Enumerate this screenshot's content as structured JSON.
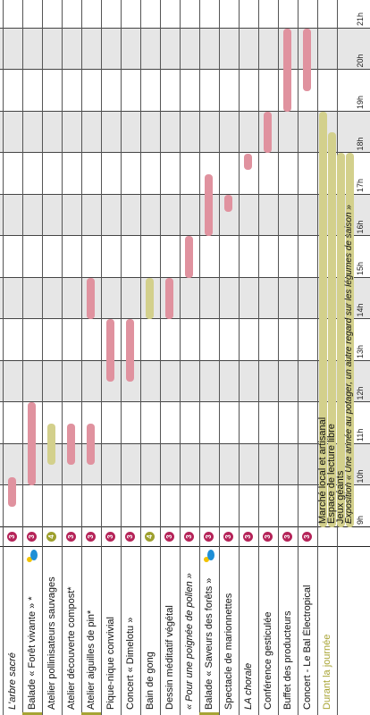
{
  "hours": [
    "9h",
    "10h",
    "11h",
    "12h",
    "13h",
    "14h",
    "15h",
    "16h",
    "17h",
    "18h",
    "19h",
    "20h",
    "21h"
  ],
  "activities": [
    {
      "label": "L'arbre sacré",
      "italic": true,
      "badge": "3",
      "badge_color": "pink",
      "bars": [
        {
          "start": 9.5,
          "end": 10.2,
          "color": "pink"
        }
      ]
    },
    {
      "label": "Balade « Forêt vivante » *",
      "italic": false,
      "badge": "3",
      "badge_color": "pink",
      "weather_icon": "sun-cloud-icon",
      "accent": true,
      "bars": [
        {
          "start": 10,
          "end": 12,
          "color": "pink"
        }
      ]
    },
    {
      "label": "Atelier pollinisateurs sauvages",
      "italic": false,
      "badge": "4",
      "badge_color": "olive",
      "bars": [
        {
          "start": 10.5,
          "end": 11.5,
          "color": "olive"
        }
      ]
    },
    {
      "label": "Atelier découverte compost*",
      "italic": false,
      "badge": "3",
      "badge_color": "pink",
      "bars": [
        {
          "start": 10.5,
          "end": 11.5,
          "color": "pink"
        }
      ]
    },
    {
      "label": "Atelier aiguilles de pin*",
      "italic": false,
      "badge": "3",
      "badge_color": "pink",
      "accent": true,
      "bars": [
        {
          "start": 10.5,
          "end": 11.5,
          "color": "pink"
        },
        {
          "start": 14,
          "end": 15,
          "color": "pink"
        }
      ]
    },
    {
      "label": "Pique-nique convivial",
      "italic": false,
      "badge": "3",
      "badge_color": "pink",
      "bars": [
        {
          "start": 12.5,
          "end": 14,
          "color": "pink"
        }
      ]
    },
    {
      "label": "Concert « Dimelotu »",
      "italic": false,
      "badge": "3",
      "badge_color": "pink",
      "bars": [
        {
          "start": 12.5,
          "end": 14,
          "color": "pink"
        }
      ]
    },
    {
      "label": "Bain de gong",
      "italic": false,
      "badge": "4",
      "badge_color": "olive",
      "bars": [
        {
          "start": 14,
          "end": 15,
          "color": "olive"
        }
      ]
    },
    {
      "label": "Dessin méditatif végétal",
      "italic": false,
      "badge": "3",
      "badge_color": "pink",
      "bars": [
        {
          "start": 14,
          "end": 15,
          "color": "pink"
        }
      ]
    },
    {
      "label": "« Pour une poignée de pollen »",
      "italic": true,
      "badge": "3",
      "badge_color": "pink",
      "bars": [
        {
          "start": 15,
          "end": 16,
          "color": "pink"
        }
      ]
    },
    {
      "label": "Balade « Saveurs des forêts »",
      "italic": false,
      "badge": "3",
      "badge_color": "pink",
      "weather_icon": "sun-cloud-icon",
      "accent": true,
      "bars": [
        {
          "start": 16,
          "end": 17.5,
          "color": "pink"
        }
      ]
    },
    {
      "label": "Spectacle de marionnettes",
      "italic": false,
      "badge": "3",
      "badge_color": "pink",
      "bars": [
        {
          "start": 16.6,
          "end": 17,
          "color": "pink"
        }
      ]
    },
    {
      "label": "LA chorale",
      "italic": true,
      "badge": "3",
      "badge_color": "pink",
      "bars": [
        {
          "start": 17.6,
          "end": 18,
          "color": "pink"
        }
      ]
    },
    {
      "label": "Conférence gesticulée",
      "italic": false,
      "badge": "3",
      "badge_color": "pink",
      "bars": [
        {
          "start": 18,
          "end": 19,
          "color": "pink"
        }
      ]
    },
    {
      "label": "Buffet des producteurs",
      "italic": false,
      "badge": "3",
      "badge_color": "pink",
      "bars": [
        {
          "start": 19,
          "end": 21,
          "color": "pink"
        }
      ]
    },
    {
      "label": "Concert - Le Bal Électropical",
      "italic": false,
      "badge": "3",
      "badge_color": "pink",
      "bars": [
        {
          "start": 19.5,
          "end": 21,
          "color": "pink"
        }
      ]
    },
    {
      "label": "Durant la journée",
      "italic": false,
      "day": true,
      "bars": []
    }
  ],
  "all_day": [
    {
      "label": "Marché local et artisanal",
      "italic": false,
      "start": 9,
      "end": 19
    },
    {
      "label": "Espace de lecture libre",
      "italic": false,
      "start": 9,
      "end": 18.5
    },
    {
      "label": "Jeux géants",
      "italic": false,
      "start": 9,
      "end": 18
    },
    {
      "label": "Exposition « Une année au potager, un autre regard sur les légumes de saison »",
      "italic": true,
      "start": 9,
      "end": 18
    }
  ],
  "colors": {
    "pink": "#e0929f",
    "olive": "#d3d08c",
    "badge_pink": "#b52459",
    "badge_olive": "#9ea02e",
    "accent": "#a6a434"
  }
}
